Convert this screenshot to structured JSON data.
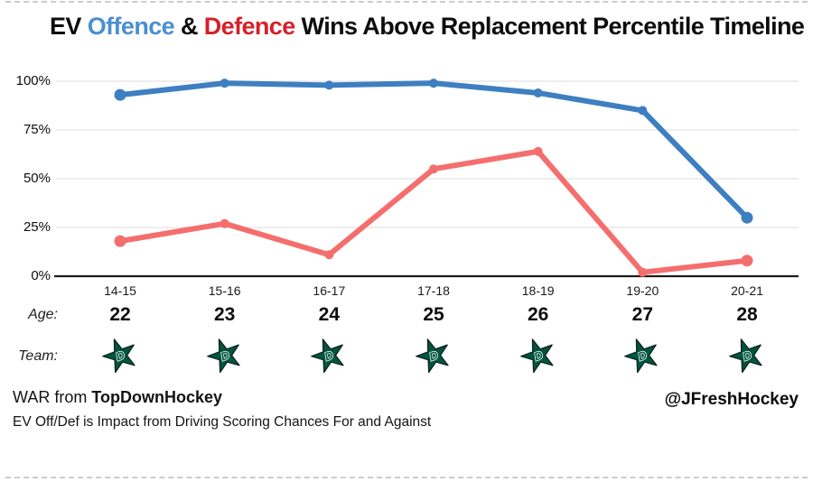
{
  "title": {
    "part_ev": "EV",
    "part_offence": "Offence",
    "part_amp": "&",
    "part_defence": "Defence",
    "part_rest": "Wins Above Replacement Percentile Timeline",
    "offence_color": "#4a8fd1",
    "defence_color": "#d6202a"
  },
  "chart_data": {
    "type": "line",
    "title": "EV Offence & Defence Wins Above Replacement Percentile Timeline",
    "x": [
      "14-15",
      "15-16",
      "16-17",
      "17-18",
      "18-19",
      "19-20",
      "20-21"
    ],
    "series": [
      {
        "name": "EV Offence",
        "color": "#3e7fc1",
        "values": [
          93,
          99,
          98,
          99,
          94,
          85,
          30
        ]
      },
      {
        "name": "EV Defence",
        "color": "#f56e6e",
        "values": [
          18,
          27,
          11,
          55,
          64,
          2,
          8
        ]
      }
    ],
    "y_ticks": [
      0,
      25,
      50,
      75,
      100
    ],
    "y_tick_labels": [
      "0%",
      "25%",
      "50%",
      "75%",
      "100%"
    ],
    "ylim": [
      0,
      100
    ],
    "grid": "horizontal-light",
    "grid_color": "#e8e8e8",
    "axis_color": "#1c1c1c",
    "legend_position": "encoded-in-title-colors"
  },
  "age_row": {
    "label": "Age:",
    "values": [
      "22",
      "23",
      "24",
      "25",
      "26",
      "27",
      "28"
    ]
  },
  "team_row": {
    "label": "Team:",
    "team_name": "Dallas Stars",
    "logo_icon": "dallas-stars-star-logo",
    "logo_color": "#00563f",
    "logo_outline": "#10211b",
    "logo_letter": "D"
  },
  "footer": {
    "war_prefix": "WAR from",
    "war_source": "TopDownHockey",
    "note": "EV Off/Def is Impact from Driving Scoring Chances For and Against",
    "credit": "@JFreshHockey"
  }
}
